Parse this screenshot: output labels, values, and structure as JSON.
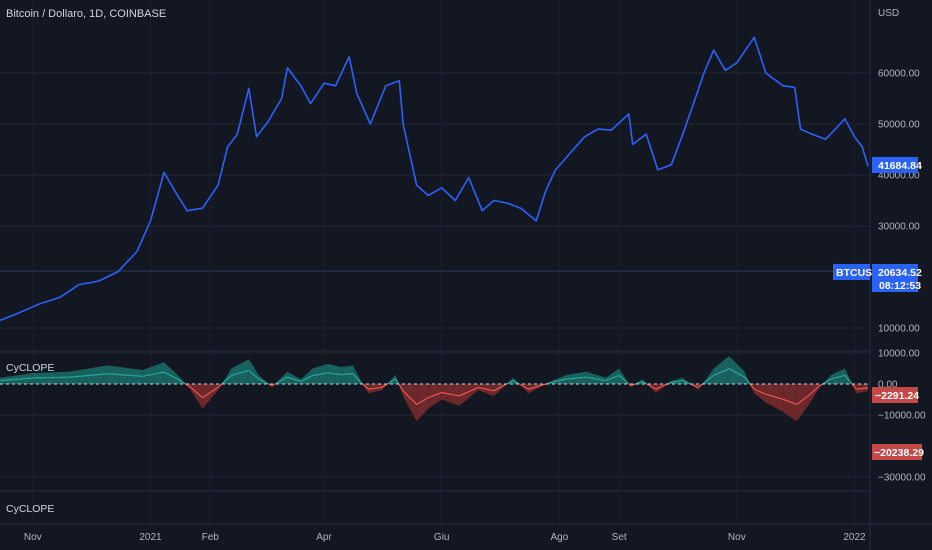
{
  "header": {
    "title": "Bitcoin / Dollaro, 1D, COINBASE",
    "currency": "USD"
  },
  "colors": {
    "background": "#131722",
    "grid": "#1e2431",
    "price_line": "#2962ff",
    "osc_positive": "#26a69a",
    "osc_negative": "#ef5350",
    "fill_positive": "#1b6f68",
    "fill_negative": "#7c2b2b",
    "price_tag": "#2962ff",
    "neg_tag": "#c54848"
  },
  "indicator": {
    "main_label": "CyCLOPE",
    "second_label": "CyCLOPE"
  },
  "tags": {
    "last_price": "41684.84",
    "symbol": "BTCUSD",
    "ref_price": "20634.52",
    "countdown": "08:12:53",
    "osc_value": "−2291.24",
    "osc_fill_value": "−20238.29"
  },
  "chart_data": [
    {
      "type": "line",
      "title": "Bitcoin / Dollaro, 1D, COINBASE",
      "series": [
        {
          "name": "BTCUSD",
          "x": [
            "2020-10-15",
            "2020-10-25",
            "2020-11-05",
            "2020-11-15",
            "2020-11-25",
            "2020-12-05",
            "2020-12-15",
            "2020-12-25",
            "2021-01-01",
            "2021-01-08",
            "2021-01-15",
            "2021-01-20",
            "2021-01-28",
            "2021-02-05",
            "2021-02-10",
            "2021-02-15",
            "2021-02-21",
            "2021-02-25",
            "2021-03-03",
            "2021-03-10",
            "2021-03-13",
            "2021-03-20",
            "2021-03-25",
            "2021-04-01",
            "2021-04-07",
            "2021-04-14",
            "2021-04-18",
            "2021-04-25",
            "2021-05-03",
            "2021-05-10",
            "2021-05-12",
            "2021-05-19",
            "2021-05-25",
            "2021-06-01",
            "2021-06-08",
            "2021-06-15",
            "2021-06-22",
            "2021-06-28",
            "2021-07-05",
            "2021-07-12",
            "2021-07-20",
            "2021-07-25",
            "2021-07-30",
            "2021-08-07",
            "2021-08-14",
            "2021-08-21",
            "2021-08-28",
            "2021-09-06",
            "2021-09-08",
            "2021-09-15",
            "2021-09-21",
            "2021-09-28",
            "2021-10-04",
            "2021-10-10",
            "2021-10-15",
            "2021-10-20",
            "2021-10-26",
            "2021-11-01",
            "2021-11-10",
            "2021-11-16",
            "2021-11-25",
            "2021-12-01",
            "2021-12-04",
            "2021-12-10",
            "2021-12-17",
            "2021-12-27",
            "2022-01-01",
            "2022-01-05",
            "2022-01-08"
          ],
          "y": [
            11500,
            13000,
            14800,
            16000,
            18500,
            19200,
            21000,
            25000,
            31000,
            40500,
            36000,
            33000,
            33500,
            38000,
            45500,
            48000,
            57000,
            47500,
            50500,
            55000,
            61000,
            57500,
            54000,
            58000,
            57500,
            63200,
            56000,
            50000,
            57500,
            58500,
            50000,
            38000,
            36000,
            37500,
            35000,
            39500,
            33000,
            35000,
            34500,
            33500,
            31000,
            37000,
            41000,
            44500,
            47500,
            49000,
            48800,
            52000,
            46000,
            48000,
            41000,
            42000,
            48000,
            54500,
            60000,
            64500,
            60500,
            62000,
            67000,
            60000,
            57500,
            57200,
            49000,
            48000,
            47000,
            51000,
            47500,
            45500,
            41685
          ]
        }
      ],
      "xlabel": "",
      "ylabel": "USD",
      "ylim": [
        5000,
        70000
      ],
      "x_ticks": [
        "Nov",
        "2021",
        "Feb",
        "Apr",
        "Giu",
        "Ago",
        "Set",
        "Nov",
        "2022"
      ],
      "y_ticks": [
        10000.0,
        30000.0,
        40000.0,
        50000.0,
        60000.0
      ],
      "y_tick_labels": [
        "10000.00",
        "30000.00",
        "40000.00",
        "50000.00",
        "60000.00"
      ],
      "grid": true
    },
    {
      "type": "area",
      "title": "CyCLOPE",
      "series": [
        {
          "name": "CyCLOPE",
          "x": [
            "2020-10-15",
            "2020-11-01",
            "2020-11-20",
            "2020-12-10",
            "2020-12-28",
            "2021-01-08",
            "2021-01-15",
            "2021-01-22",
            "2021-01-28",
            "2021-02-05",
            "2021-02-12",
            "2021-02-21",
            "2021-02-26",
            "2021-03-05",
            "2021-03-13",
            "2021-03-20",
            "2021-03-26",
            "2021-04-03",
            "2021-04-10",
            "2021-04-16",
            "2021-04-20",
            "2021-04-24",
            "2021-05-01",
            "2021-05-08",
            "2021-05-12",
            "2021-05-19",
            "2021-05-25",
            "2021-06-01",
            "2021-06-10",
            "2021-06-20",
            "2021-06-28",
            "2021-07-08",
            "2021-07-16",
            "2021-07-22",
            "2021-07-28",
            "2021-08-05",
            "2021-08-15",
            "2021-08-25",
            "2021-09-01",
            "2021-09-07",
            "2021-09-13",
            "2021-09-20",
            "2021-09-28",
            "2021-10-04",
            "2021-10-12",
            "2021-10-20",
            "2021-10-28",
            "2021-11-05",
            "2021-11-10",
            "2021-11-16",
            "2021-11-25",
            "2021-12-02",
            "2021-12-08",
            "2021-12-14",
            "2021-12-20",
            "2021-12-27",
            "2022-01-02",
            "2022-01-08"
          ],
          "y": [
            2000,
            3500,
            4000,
            6000,
            4500,
            7000,
            3000,
            -2000,
            -8000,
            -2000,
            5000,
            8000,
            3000,
            -1000,
            4000,
            1500,
            5000,
            6500,
            5500,
            6000,
            1000,
            -3000,
            -2000,
            3000,
            -4000,
            -12000,
            -8000,
            -5000,
            -7000,
            -2000,
            -4000,
            2000,
            -3000,
            -1000,
            1000,
            3000,
            4000,
            2000,
            5000,
            -1000,
            1500,
            -3000,
            1000,
            2000,
            -2000,
            5000,
            9000,
            4000,
            -3000,
            -6000,
            -9000,
            -12000,
            -7000,
            -1000,
            3000,
            5000,
            -3000,
            -2291
          ]
        }
      ],
      "ylim": [
        -32000,
        10000
      ],
      "y_ticks": [
        10000.0,
        0.0,
        -10000.0,
        -30000.0
      ],
      "y_tick_labels": [
        "10000.00",
        "0.00",
        "−10000.00",
        "−30000.00"
      ],
      "grid": true
    }
  ]
}
